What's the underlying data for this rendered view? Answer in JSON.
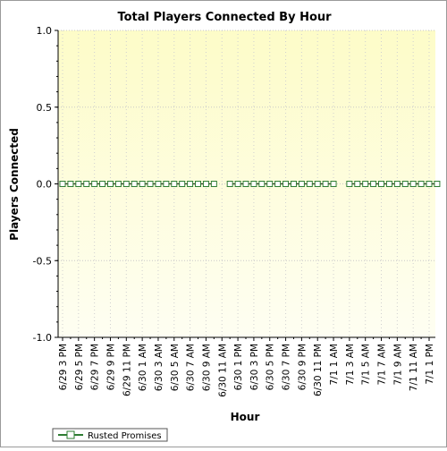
{
  "chart_data": {
    "type": "line",
    "title": "Total Players Connected By Hour",
    "xlabel": "Hour",
    "ylabel": "Players Connected",
    "ylim": [
      -1.0,
      1.0
    ],
    "yticks": [
      "1.0",
      "0.5",
      "0.0",
      "-0.5",
      "-1.0"
    ],
    "ytick_values": [
      1.0,
      0.5,
      0.0,
      -0.5,
      -1.0
    ],
    "xtick_labels": [
      "6/29 3 PM",
      "6/29 5 PM",
      "6/29 7 PM",
      "6/29 9 PM",
      "6/29 11 PM",
      "6/30 1 AM",
      "6/30 3 AM",
      "6/30 5 AM",
      "6/30 7 AM",
      "6/30 9 AM",
      "6/30 11 AM",
      "6/30 1 PM",
      "6/30 3 PM",
      "6/30 5 PM",
      "6/30 7 PM",
      "6/30 9 PM",
      "6/30 11 PM",
      "7/1 1 AM",
      "7/1 3 AM",
      "7/1 5 AM",
      "7/1 7 AM",
      "7/1 9 AM",
      "7/1 11 AM",
      "7/1 1 PM"
    ],
    "grid": true,
    "legend_position": "bottom-left",
    "series": [
      {
        "name": "Rusted Promises",
        "color": "#2e7d32",
        "segments": [
          {
            "x_start_hour": 0,
            "values": [
              0,
              0,
              0,
              0,
              0,
              0,
              0,
              0,
              0,
              0,
              0,
              0,
              0,
              0,
              0,
              0,
              0,
              0,
              0,
              0
            ]
          },
          {
            "x_start_hour": 21,
            "values": [
              0,
              0,
              0,
              0,
              0,
              0,
              0,
              0,
              0,
              0,
              0,
              0,
              0,
              0
            ]
          },
          {
            "x_start_hour": 36,
            "values": [
              0,
              0,
              0,
              0,
              0,
              0,
              0,
              0,
              0,
              0,
              0,
              0
            ]
          }
        ]
      }
    ]
  }
}
